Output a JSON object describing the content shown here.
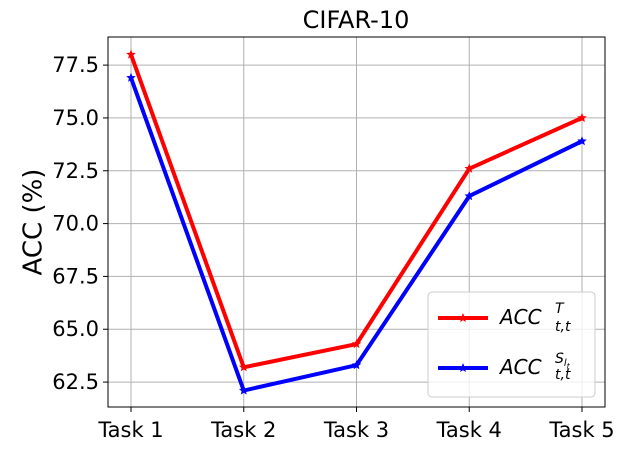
{
  "chart_data": {
    "type": "line",
    "title": "CIFAR-10",
    "y_label": "ACC (%)",
    "categories": [
      "Task 1",
      "Task 2",
      "Task 3",
      "Task 4",
      "Task 5"
    ],
    "series": [
      {
        "name": "ACC",
        "subscript": "t,t",
        "superscript": "T",
        "color": "#ff0000",
        "values": [
          78.0,
          63.2,
          64.3,
          72.6,
          75.0
        ]
      },
      {
        "name": "ACC",
        "subscript": "t,t",
        "superscript": "S",
        "superscript_subscript": "l",
        "superscript_subscript_sub": "t",
        "color": "#0000ff",
        "values": [
          76.9,
          62.1,
          63.3,
          71.3,
          73.9
        ]
      }
    ],
    "ylim": [
      61.32,
      78.83
    ],
    "yticks": [
      62.5,
      {
        "value": 65,
        "label": "65.0"
      },
      67.5,
      {
        "value": 70,
        "label": "70.0"
      },
      72.5,
      {
        "value": 75,
        "label": "75.0"
      },
      77.5
    ],
    "grid": true,
    "legend": "lower right"
  }
}
